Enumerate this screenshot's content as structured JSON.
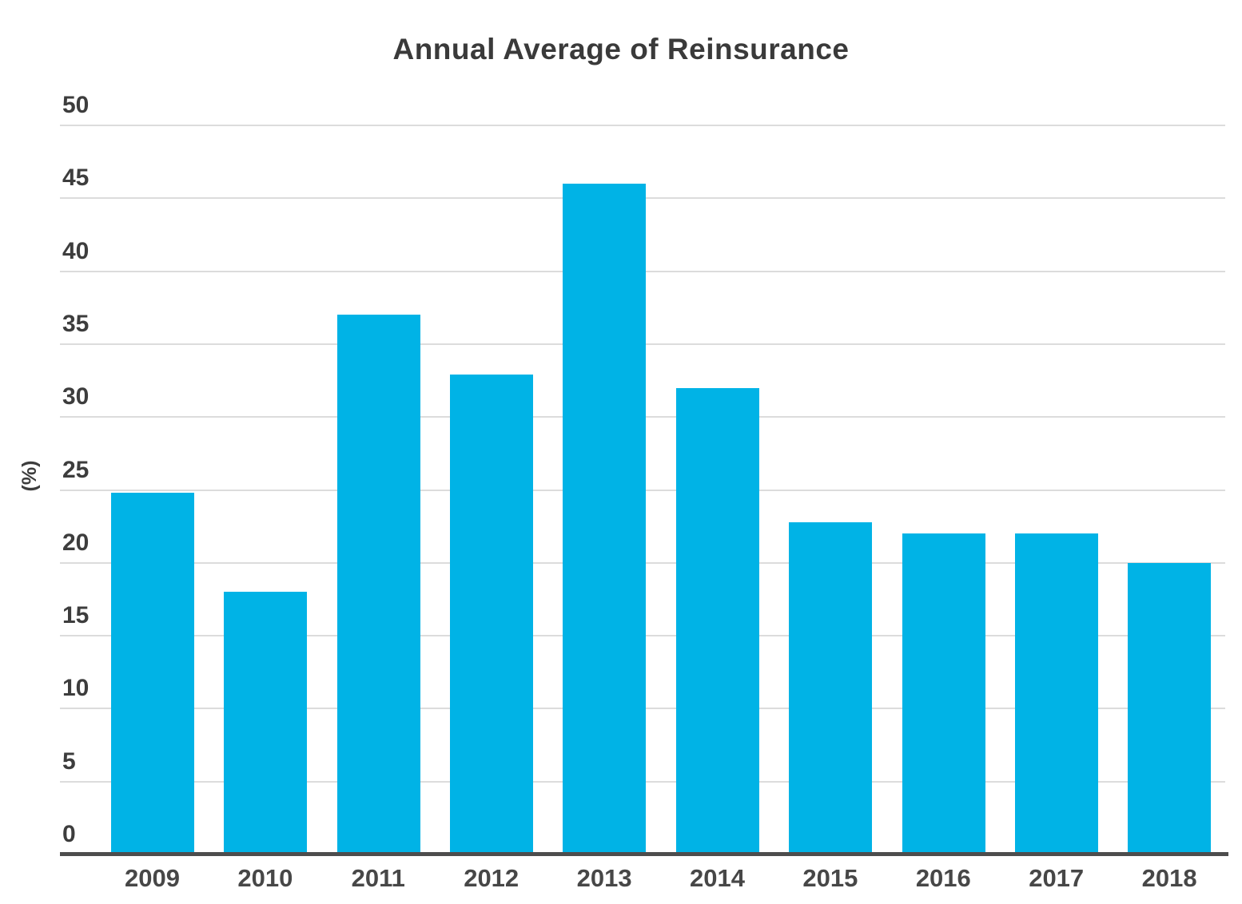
{
  "chart_data": {
    "type": "bar",
    "title": "Annual Average of Reinsurance",
    "xlabel": "",
    "ylabel": "(%)",
    "categories": [
      "2009",
      "2010",
      "2011",
      "2012",
      "2013",
      "2014",
      "2015",
      "2016",
      "2017",
      "2018"
    ],
    "values": [
      24.8,
      18.0,
      37.0,
      32.9,
      46.0,
      32.0,
      22.8,
      22.0,
      22.0,
      20.0
    ],
    "ylim": [
      0,
      50
    ],
    "yticks": [
      0,
      5,
      10,
      15,
      20,
      25,
      30,
      35,
      40,
      45,
      50
    ],
    "grid": "horizontal",
    "legend": "none",
    "bar_color": "#00b3e6",
    "gridline_color": "#dcdcdc",
    "axis_line_color": "#4d4d4d",
    "text_color": "#3d3d3d",
    "title_color": "#3a3a3a"
  }
}
